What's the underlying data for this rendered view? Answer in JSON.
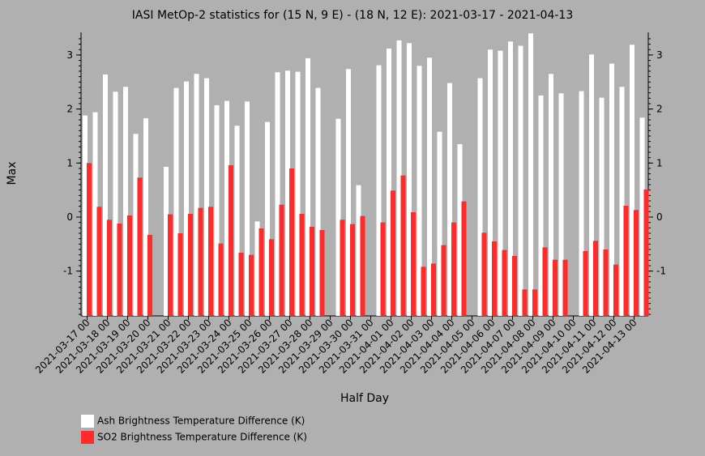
{
  "chart_data": {
    "type": "bar",
    "title": "IASI MetOp-2 statistics for (15 N, 9 E) - (18 N, 12 E): 2021-03-17 - 2021-04-13",
    "xlabel": "Half Day",
    "ylabel": "Max",
    "ylim": [
      -1.82,
      3.4
    ],
    "yticks": [
      -1,
      0,
      1,
      2,
      3
    ],
    "grid": false,
    "legend_position": "bottom-left",
    "categories": [
      "2021-03-17 00",
      "2021-03-17 12",
      "2021-03-18 00",
      "2021-03-18 12",
      "2021-03-19 00",
      "2021-03-19 12",
      "2021-03-20 00",
      "2021-03-20 12",
      "2021-03-21 00",
      "2021-03-21 12",
      "2021-03-22 00",
      "2021-03-22 12",
      "2021-03-23 00",
      "2021-03-23 12",
      "2021-03-24 00",
      "2021-03-24 12",
      "2021-03-25 00",
      "2021-03-25 12",
      "2021-03-26 00",
      "2021-03-26 12",
      "2021-03-27 00",
      "2021-03-27 12",
      "2021-03-28 00",
      "2021-03-28 12",
      "2021-03-29 00",
      "2021-03-29 12",
      "2021-03-30 00",
      "2021-03-30 12",
      "2021-03-31 00",
      "2021-03-31 12",
      "2021-04-01 00",
      "2021-04-01 12",
      "2021-04-02 00",
      "2021-04-02 12",
      "2021-04-03 00",
      "2021-04-03 12",
      "2021-04-04 00",
      "2021-04-04 12",
      "2021-04-05 00",
      "2021-04-05 12",
      "2021-04-06 00",
      "2021-04-06 12",
      "2021-04-07 00",
      "2021-04-07 12",
      "2021-04-08 00",
      "2021-04-08 12",
      "2021-04-09 00",
      "2021-04-09 12",
      "2021-04-10 00",
      "2021-04-10 12",
      "2021-04-11 00",
      "2021-04-11 12",
      "2021-04-12 00",
      "2021-04-12 12",
      "2021-04-13 00",
      "2021-04-13 12"
    ],
    "x_tick_labels": [
      "2021-03-17 00",
      "2021-03-18 00",
      "2021-03-19 00",
      "2021-03-20 00",
      "2021-03-21 00",
      "2021-03-22 00",
      "2021-03-23 00",
      "2021-03-24 00",
      "2021-03-25 00",
      "2021-03-26 00",
      "2021-03-27 00",
      "2021-03-28 00",
      "2021-03-29 00",
      "2021-03-30 00",
      "2021-03-31 00",
      "2021-04-01 00",
      "2021-04-02 00",
      "2021-04-03 00",
      "2021-04-04 00",
      "2021-04-05 00",
      "2021-04-06 00",
      "2021-04-07 00",
      "2021-04-08 00",
      "2021-04-09 00",
      "2021-04-10 00",
      "2021-04-11 00",
      "2021-04-12 00",
      "2021-04-13 00"
    ],
    "series": [
      {
        "name": "Ash Brightness Temperature Difference (K)",
        "color": "#ffffff",
        "values": [
          [
            1.88,
            1.94
          ],
          [
            2.64,
            2.32
          ],
          [
            2.41,
            1.54
          ],
          [
            1.83,
            null
          ],
          [
            0.93,
            2.39
          ],
          [
            2.51,
            2.65
          ],
          [
            2.57,
            2.07
          ],
          [
            2.15,
            1.69
          ],
          [
            2.14,
            -0.08
          ],
          [
            1.76,
            2.68
          ],
          [
            2.71,
            2.69
          ],
          [
            2.94,
            2.39
          ],
          [
            null,
            1.82
          ],
          [
            2.74,
            0.59
          ],
          [
            null,
            2.81
          ],
          [
            3.12,
            3.27
          ],
          [
            3.22,
            2.8
          ],
          [
            2.95,
            1.58
          ],
          [
            2.48,
            1.35
          ],
          [
            null,
            2.57
          ],
          [
            3.1,
            3.08
          ],
          [
            3.25,
            3.17
          ],
          [
            3.4,
            2.25
          ],
          [
            2.65,
            2.29
          ],
          [
            null,
            2.33
          ],
          [
            3.01,
            2.21
          ],
          [
            2.84,
            2.41
          ],
          [
            3.19,
            1.84
          ]
        ]
      },
      {
        "name": "SO2 Brightness Temperature Difference (K)",
        "color": "#ff2a2a",
        "values": [
          [
            1.0,
            0.19
          ],
          [
            -0.05,
            -0.12
          ],
          [
            0.03,
            0.73
          ],
          [
            -0.33,
            null
          ],
          [
            0.05,
            -0.3
          ],
          [
            0.06,
            0.17
          ],
          [
            0.19,
            -0.49
          ],
          [
            0.96,
            -0.66
          ],
          [
            -0.7,
            -0.21
          ],
          [
            -0.41,
            0.23
          ],
          [
            0.9,
            0.06
          ],
          [
            -0.18,
            -0.24
          ],
          [
            null,
            -0.05
          ],
          [
            -0.13,
            0.02
          ],
          [
            null,
            -0.1
          ],
          [
            0.49,
            0.77
          ],
          [
            0.09,
            -0.92
          ],
          [
            -0.86,
            -0.52
          ],
          [
            -0.1,
            0.29
          ],
          [
            null,
            -0.29
          ],
          [
            -0.45,
            -0.61
          ],
          [
            -0.72,
            -1.34
          ],
          [
            -1.34,
            -0.56
          ],
          [
            -0.79,
            -0.79
          ],
          [
            null,
            -0.63
          ],
          [
            -0.44,
            -0.6
          ],
          [
            -0.88,
            0.21
          ],
          [
            0.13,
            0.51
          ]
        ]
      }
    ]
  }
}
